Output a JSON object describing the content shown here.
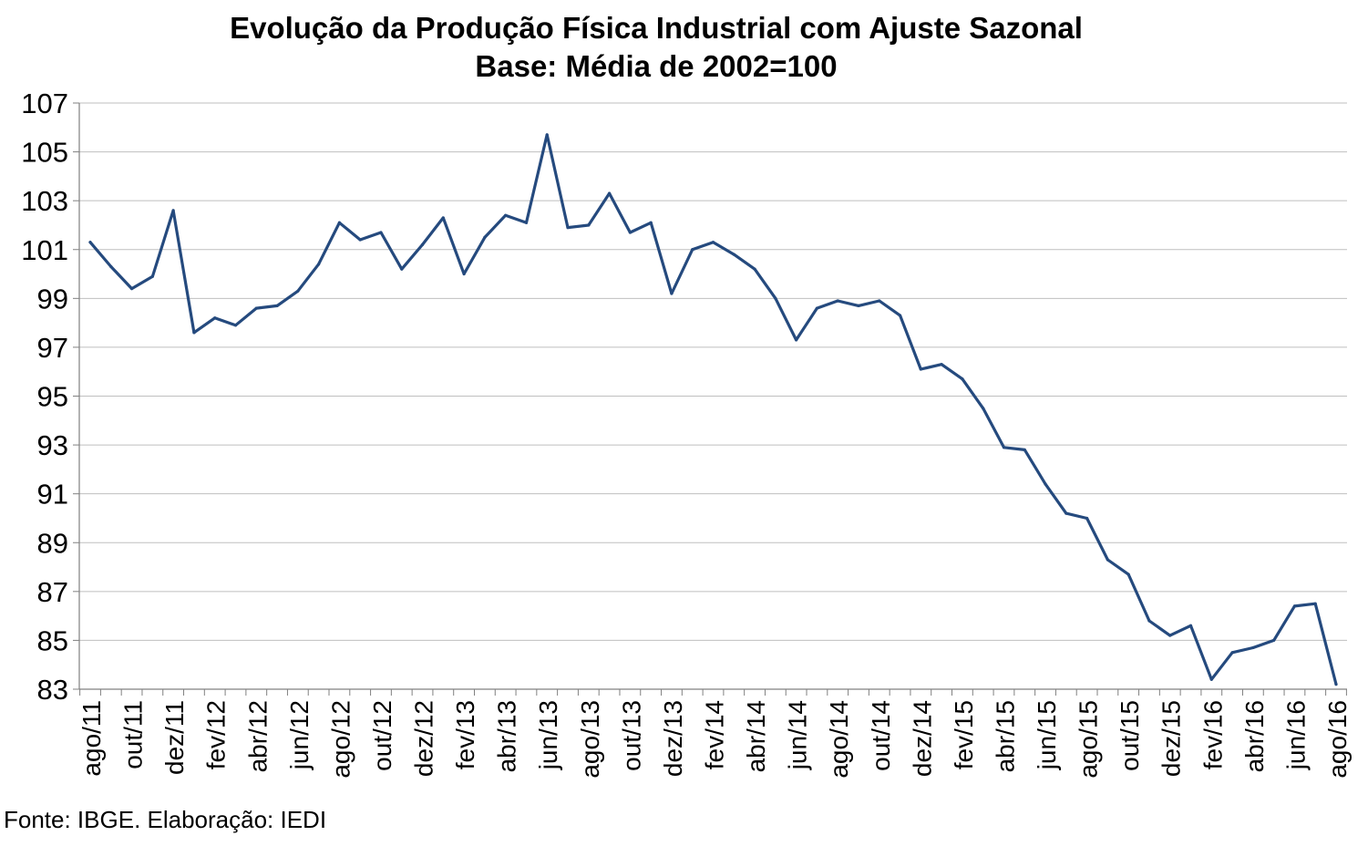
{
  "chart_data": {
    "type": "line",
    "title": "Evolução da Produção Física Industrial com Ajuste Sazonal",
    "subtitle": "Base: Média de 2002=100",
    "xlabel": "",
    "ylabel": "",
    "ylim": [
      83,
      107
    ],
    "yticks": [
      "107",
      "105",
      "103",
      "101",
      "99",
      "97",
      "95",
      "93",
      "91",
      "89",
      "87",
      "85",
      "83"
    ],
    "x_tick_labels": [
      "ago/11",
      "out/11",
      "dez/11",
      "fev/12",
      "abr/12",
      "jun/12",
      "ago/12",
      "out/12",
      "dez/12",
      "fev/13",
      "abr/13",
      "jun/13",
      "ago/13",
      "out/13",
      "dez/13",
      "fev/14",
      "abr/14",
      "jun/14",
      "ago/14",
      "out/14",
      "dez/14",
      "fev/15",
      "abr/15",
      "jun/15",
      "ago/15",
      "out/15",
      "dez/15",
      "fev/16",
      "abr/16",
      "jun/16",
      "ago/16"
    ],
    "grid": true,
    "legend": "none",
    "series": [
      {
        "color": "#254A7E",
        "values": [
          101.3,
          100.3,
          99.4,
          99.9,
          102.6,
          97.6,
          98.2,
          97.9,
          98.6,
          98.7,
          99.3,
          100.4,
          102.1,
          101.4,
          101.7,
          100.2,
          101.2,
          102.3,
          100.0,
          101.5,
          102.4,
          102.1,
          105.7,
          101.9,
          102.0,
          103.3,
          101.7,
          102.1,
          99.2,
          101.0,
          101.3,
          100.8,
          100.2,
          99.0,
          97.3,
          98.6,
          98.9,
          98.7,
          98.9,
          98.3,
          96.1,
          96.3,
          95.7,
          94.5,
          92.9,
          92.8,
          91.4,
          90.2,
          90.0,
          88.3,
          87.7,
          85.8,
          85.2,
          85.6,
          83.4,
          84.5,
          84.7,
          85.0,
          86.4,
          86.5,
          83.2
        ]
      }
    ]
  },
  "source": "Fonte: IBGE. Elaboração: IEDI"
}
